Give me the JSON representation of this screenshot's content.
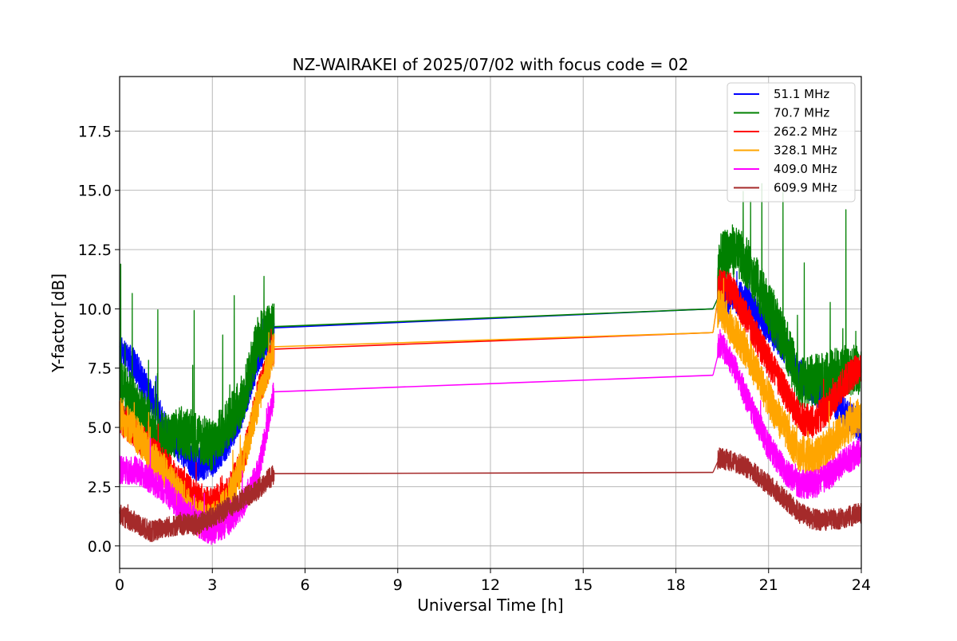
{
  "chart_data": {
    "type": "line",
    "title": "NZ-WAIRAKEI of 2025/07/02 with focus code = 02",
    "xlabel": "Universal Time [h]",
    "ylabel": "Y-factor [dB]",
    "xlim": [
      0,
      24
    ],
    "ylim": [
      -0.95,
      19.8
    ],
    "xticks": [
      0,
      3,
      6,
      9,
      12,
      15,
      18,
      21,
      24
    ],
    "yticks": [
      0.0,
      2.5,
      5.0,
      7.5,
      10.0,
      12.5,
      15.0,
      17.5
    ],
    "ytick_labels": [
      "0.0",
      "2.5",
      "5.0",
      "7.5",
      "10.0",
      "12.5",
      "15.0",
      "17.5"
    ],
    "grid": true,
    "legend_position": "top-right",
    "gap_hours": [
      5.0,
      19.2
    ],
    "series": [
      {
        "name": "51.1 MHz",
        "legend_label": " 51.1 MHz",
        "color": "#0000ff",
        "noise": 0.7,
        "spikes": 0.3,
        "points": [
          [
            0,
            8.2
          ],
          [
            0.5,
            7.6
          ],
          [
            1.0,
            6.3
          ],
          [
            1.5,
            5.0
          ],
          [
            2.0,
            4.0
          ],
          [
            2.5,
            3.4
          ],
          [
            3.0,
            3.6
          ],
          [
            3.5,
            4.4
          ],
          [
            4.0,
            5.8
          ],
          [
            4.5,
            8.0
          ],
          [
            5.0,
            9.2
          ],
          [
            19.2,
            10.0
          ],
          [
            19.4,
            10.0
          ],
          [
            19.8,
            10.6
          ],
          [
            20.3,
            10.3
          ],
          [
            21.0,
            9.2
          ],
          [
            21.5,
            8.4
          ],
          [
            22.0,
            7.2
          ],
          [
            22.5,
            6.6
          ],
          [
            23.0,
            6.2
          ],
          [
            23.5,
            5.6
          ],
          [
            24.0,
            5.0
          ]
        ]
      },
      {
        "name": "70.7 MHz",
        "legend_label": " 70.7 MHz",
        "color": "#008000",
        "noise": 1.1,
        "spikes": 2.4,
        "points": [
          [
            0,
            6.8
          ],
          [
            0.5,
            6.0
          ],
          [
            1.0,
            5.0
          ],
          [
            1.5,
            4.5
          ],
          [
            2.0,
            4.8
          ],
          [
            2.5,
            4.6
          ],
          [
            3.0,
            4.2
          ],
          [
            3.5,
            5.2
          ],
          [
            4.0,
            6.2
          ],
          [
            4.5,
            8.8
          ],
          [
            5.0,
            9.25
          ],
          [
            19.2,
            10.0
          ],
          [
            19.4,
            12.0
          ],
          [
            19.8,
            12.5
          ],
          [
            20.3,
            12.0
          ],
          [
            21.0,
            10.0
          ],
          [
            21.5,
            8.8
          ],
          [
            22.0,
            6.8
          ],
          [
            22.5,
            7.0
          ],
          [
            23.0,
            7.2
          ],
          [
            23.5,
            7.4
          ],
          [
            24.0,
            7.5
          ]
        ]
      },
      {
        "name": "262.2 MHz",
        "legend_label": "262.2 MHz",
        "color": "#ff0000",
        "noise": 0.7,
        "spikes": 0.5,
        "points": [
          [
            0,
            5.4
          ],
          [
            0.5,
            4.8
          ],
          [
            1.0,
            4.0
          ],
          [
            1.5,
            3.4
          ],
          [
            2.0,
            2.6
          ],
          [
            2.5,
            2.0
          ],
          [
            3.0,
            1.8
          ],
          [
            3.5,
            2.2
          ],
          [
            4.0,
            3.6
          ],
          [
            4.5,
            6.5
          ],
          [
            5.0,
            8.3
          ],
          [
            19.2,
            9.0
          ],
          [
            19.4,
            11.0
          ],
          [
            19.8,
            10.8
          ],
          [
            20.3,
            9.6
          ],
          [
            21.0,
            7.8
          ],
          [
            21.5,
            6.6
          ],
          [
            22.0,
            5.4
          ],
          [
            22.5,
            5.2
          ],
          [
            23.0,
            6.0
          ],
          [
            23.5,
            7.0
          ],
          [
            24.0,
            7.6
          ]
        ]
      },
      {
        "name": "328.1 MHz",
        "legend_label": "328.1 MHz",
        "color": "#ffa500",
        "noise": 0.8,
        "spikes": 0.7,
        "points": [
          [
            0,
            5.6
          ],
          [
            0.5,
            4.8
          ],
          [
            1.0,
            3.8
          ],
          [
            1.5,
            3.0
          ],
          [
            2.0,
            2.0
          ],
          [
            2.5,
            1.2
          ],
          [
            3.0,
            1.0
          ],
          [
            3.5,
            1.8
          ],
          [
            4.0,
            3.6
          ],
          [
            4.5,
            6.2
          ],
          [
            5.0,
            8.4
          ],
          [
            19.2,
            9.0
          ],
          [
            19.4,
            10.2
          ],
          [
            19.8,
            9.2
          ],
          [
            20.3,
            8.2
          ],
          [
            21.0,
            6.2
          ],
          [
            21.5,
            5.0
          ],
          [
            22.0,
            3.9
          ],
          [
            22.5,
            3.7
          ],
          [
            23.0,
            4.3
          ],
          [
            23.5,
            5.0
          ],
          [
            24.0,
            5.5
          ]
        ]
      },
      {
        "name": "409.0 MHz",
        "legend_label": "409.0 MHz",
        "color": "#ff00ff",
        "noise": 0.6,
        "spikes": 0.5,
        "points": [
          [
            0,
            3.2
          ],
          [
            0.5,
            3.2
          ],
          [
            1.0,
            2.8
          ],
          [
            1.5,
            2.3
          ],
          [
            2.0,
            1.6
          ],
          [
            2.5,
            1.0
          ],
          [
            3.0,
            0.6
          ],
          [
            3.5,
            1.0
          ],
          [
            4.0,
            1.8
          ],
          [
            4.5,
            3.2
          ],
          [
            5.0,
            6.5
          ],
          [
            19.2,
            7.2
          ],
          [
            19.4,
            8.6
          ],
          [
            19.8,
            7.8
          ],
          [
            20.3,
            6.2
          ],
          [
            21.0,
            4.2
          ],
          [
            21.5,
            3.2
          ],
          [
            22.0,
            2.6
          ],
          [
            22.5,
            2.6
          ],
          [
            23.0,
            3.0
          ],
          [
            23.5,
            3.6
          ],
          [
            24.0,
            4.0
          ]
        ]
      },
      {
        "name": "609.9 MHz",
        "legend_label": "609.9 MHz",
        "color": "#a52a2a",
        "noise": 0.45,
        "spikes": 0.15,
        "points": [
          [
            0,
            1.3
          ],
          [
            0.5,
            1.0
          ],
          [
            1.0,
            0.6
          ],
          [
            1.5,
            0.8
          ],
          [
            2.0,
            0.9
          ],
          [
            2.5,
            0.9
          ],
          [
            3.0,
            1.2
          ],
          [
            3.5,
            1.6
          ],
          [
            4.0,
            2.0
          ],
          [
            4.5,
            2.4
          ],
          [
            5.0,
            3.05
          ],
          [
            19.2,
            3.1
          ],
          [
            19.4,
            3.7
          ],
          [
            19.8,
            3.6
          ],
          [
            20.3,
            3.3
          ],
          [
            21.0,
            2.6
          ],
          [
            21.5,
            2.0
          ],
          [
            22.0,
            1.4
          ],
          [
            22.5,
            1.1
          ],
          [
            23.0,
            1.1
          ],
          [
            23.5,
            1.2
          ],
          [
            24.0,
            1.4
          ]
        ]
      }
    ]
  }
}
